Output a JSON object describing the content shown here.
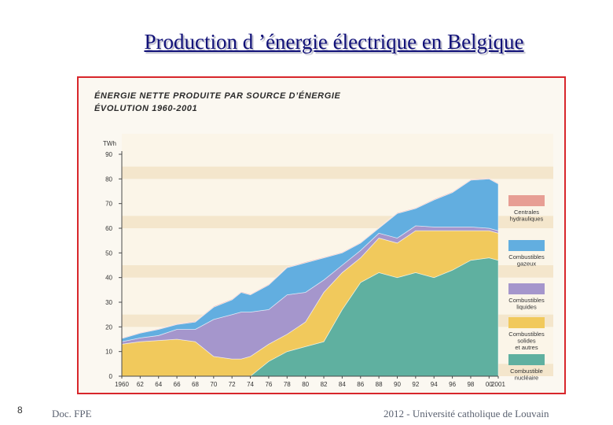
{
  "slide": {
    "title": "Production d ’énergie électrique en Belgique",
    "page_number": "8",
    "source": "Doc. FPE",
    "affiliation": "2012 - Université catholique de Louvain"
  },
  "chart_data": {
    "type": "area",
    "stacked": true,
    "title": "ÉNERGIE NETTE PRODUITE PAR SOURCE D’ÉNERGIE",
    "subtitle": "ÉVOLUTION 1960-2001",
    "ylabel": "TWh",
    "xlabel": "",
    "ylim": [
      0,
      90
    ],
    "xlim": [
      1960,
      2001
    ],
    "yticks": [
      0,
      10,
      20,
      30,
      40,
      50,
      60,
      70,
      80,
      90
    ],
    "xticks": [
      {
        "x": 1960,
        "label": "1960"
      },
      {
        "x": 1962,
        "label": "62"
      },
      {
        "x": 1964,
        "label": "64"
      },
      {
        "x": 1966,
        "label": "66"
      },
      {
        "x": 1968,
        "label": "68"
      },
      {
        "x": 1970,
        "label": "70"
      },
      {
        "x": 1972,
        "label": "72"
      },
      {
        "x": 1974,
        "label": "74"
      },
      {
        "x": 1976,
        "label": "76"
      },
      {
        "x": 1978,
        "label": "78"
      },
      {
        "x": 1980,
        "label": "80"
      },
      {
        "x": 1982,
        "label": "82"
      },
      {
        "x": 1984,
        "label": "84"
      },
      {
        "x": 1986,
        "label": "86"
      },
      {
        "x": 1988,
        "label": "88"
      },
      {
        "x": 1990,
        "label": "90"
      },
      {
        "x": 1992,
        "label": "92"
      },
      {
        "x": 1994,
        "label": "94"
      },
      {
        "x": 1996,
        "label": "96"
      },
      {
        "x": 1998,
        "label": "98"
      },
      {
        "x": 2000,
        "label": "00"
      },
      {
        "x": 2001,
        "label": "2001"
      }
    ],
    "grid": "horizontal bands",
    "legend_position": "right",
    "x": [
      1960,
      1962,
      1964,
      1966,
      1968,
      1970,
      1972,
      1973,
      1974,
      1976,
      1978,
      1980,
      1982,
      1984,
      1986,
      1988,
      1990,
      1992,
      1994,
      1996,
      1998,
      2000,
      2001
    ],
    "series": [
      {
        "name": "Combustible nucléaire",
        "color": "#5fb0a0",
        "values": [
          0,
          0,
          0,
          0,
          0,
          0,
          0,
          0,
          0,
          6,
          10,
          12,
          14,
          27,
          38,
          42,
          40,
          42,
          40,
          43,
          47,
          48,
          47
        ]
      },
      {
        "name": "Combustibles solides et autres",
        "color": "#f1c95c",
        "values": [
          13,
          14,
          14.5,
          15,
          14,
          8,
          7,
          7,
          8,
          7,
          7,
          10,
          20,
          15,
          10,
          14,
          14,
          17,
          19,
          16,
          12,
          11,
          11
        ]
      },
      {
        "name": "Combustibles liquides",
        "color": "#a596cc",
        "values": [
          1,
          1.5,
          2,
          4,
          5,
          15,
          18,
          19,
          18,
          14,
          16,
          12,
          5,
          3,
          3,
          2,
          2,
          2,
          1.5,
          1.5,
          1.5,
          1,
          1
        ]
      },
      {
        "name": "Combustibles gazeux",
        "color": "#62aee0",
        "values": [
          1.3,
          2,
          2.5,
          2,
          3,
          5,
          6,
          8,
          7,
          10,
          11,
          12,
          9,
          5,
          3,
          2,
          10,
          7,
          11,
          14,
          19,
          20,
          19
        ]
      },
      {
        "name": "Centrales hydrauliques",
        "color": "#e79e94",
        "values": [
          0.2,
          0.2,
          0.2,
          0.3,
          0.3,
          0.3,
          0.3,
          0.3,
          0.3,
          0.3,
          0.3,
          0.3,
          0.3,
          0.3,
          0.3,
          0.3,
          0.3,
          0.3,
          0.3,
          0.3,
          0.3,
          0.3,
          0.3
        ]
      }
    ],
    "legend": [
      {
        "label": "Centrales hydrauliques",
        "color": "#e79e94"
      },
      {
        "label": "Combustibles gazeux",
        "color": "#62aee0"
      },
      {
        "label": "Combustibles liquides",
        "color": "#a596cc"
      },
      {
        "label": "Combustibles solides et autres",
        "color": "#f1c95c"
      },
      {
        "label": "Combustible nucléaire",
        "color": "#5fb0a0"
      }
    ]
  }
}
